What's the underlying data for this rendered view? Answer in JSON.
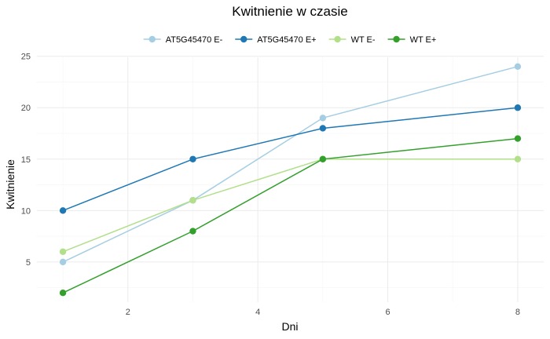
{
  "chart_data": {
    "type": "line",
    "title": "Kwitnienie w czasie",
    "xlabel": "Dni",
    "ylabel": "Kwitnienie",
    "xlim": [
      0.6,
      8.4
    ],
    "ylim": [
      1.1,
      24.9
    ],
    "x_ticks": [
      2,
      4,
      6,
      8
    ],
    "y_ticks": [
      5,
      10,
      15,
      20,
      25
    ],
    "grid": true,
    "legend_position": "top",
    "series": [
      {
        "name": "AT5G45470 E-",
        "color": "#a6cee3",
        "points": [
          [
            1,
            5
          ],
          [
            3,
            11
          ],
          [
            5,
            19
          ],
          [
            8,
            24
          ]
        ]
      },
      {
        "name": "AT5G45470 E+",
        "color": "#1f78b4",
        "points": [
          [
            1,
            10
          ],
          [
            3,
            15
          ],
          [
            5,
            18
          ],
          [
            8,
            20
          ]
        ]
      },
      {
        "name": "WT E-",
        "color": "#b2df8a",
        "points": [
          [
            1,
            6
          ],
          [
            3,
            11
          ],
          [
            5,
            15
          ],
          [
            8,
            15
          ]
        ]
      },
      {
        "name": "WT E+",
        "color": "#33a02c",
        "points": [
          [
            1,
            2
          ],
          [
            3,
            8
          ],
          [
            5,
            15
          ],
          [
            8,
            17
          ]
        ]
      }
    ]
  }
}
